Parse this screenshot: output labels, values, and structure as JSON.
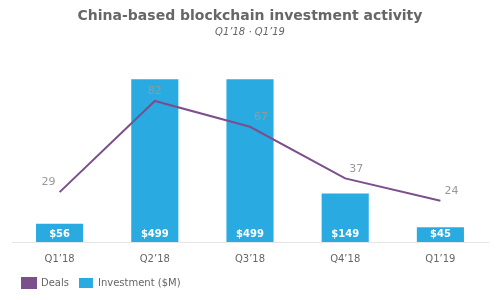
{
  "chart_data": {
    "type": "bar",
    "title": "China-based blockchain investment activity",
    "subtitle": "Q1’18 · Q1’19",
    "categories": [
      "Q1’18",
      "Q2’18",
      "Q3’18",
      "Q4’18",
      "Q1’19"
    ],
    "series": [
      {
        "name": "Investment ($M)",
        "type": "bar",
        "color": "#29ABE2",
        "values": [
          56,
          499,
          499,
          149,
          45
        ],
        "value_labels": [
          "$56",
          "$499",
          "$499",
          "$149",
          "$45"
        ]
      },
      {
        "name": "Deals",
        "type": "line",
        "color": "#7B4F8E",
        "axis": "y2",
        "values": [
          29,
          82,
          67,
          37,
          24
        ]
      }
    ],
    "ylim": [
      0,
      580
    ],
    "y2lim": [
      0,
      110
    ],
    "data_labels": true,
    "tick_labels": "x",
    "grid": false,
    "legend": "bottom"
  }
}
